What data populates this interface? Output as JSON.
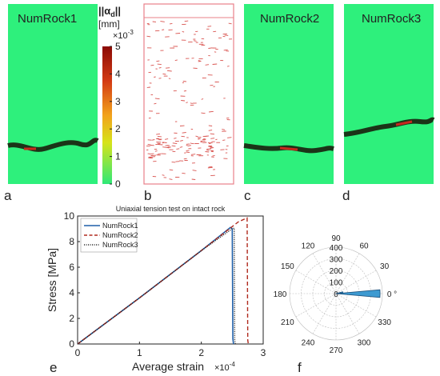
{
  "panels": {
    "a": {
      "label": "a",
      "title": "NumRock1"
    },
    "b": {
      "label": "b"
    },
    "c": {
      "label": "c",
      "title": "NumRock2"
    },
    "d": {
      "label": "d",
      "title": "NumRock3"
    },
    "e": {
      "label": "e"
    },
    "f": {
      "label": "f"
    }
  },
  "colorbar": {
    "title_line1": "||α",
    "title_sub": "d",
    "title_end": "||",
    "unit": "[mm]",
    "multiplier": "×10",
    "multiplier_exp": "-3",
    "ticks": [
      "5",
      "4",
      "3",
      "2",
      "1",
      "0"
    ],
    "range": [
      0,
      5
    ],
    "colors": [
      "#2ee878",
      "#d6e31a",
      "#f2a21c",
      "#d33a14",
      "#8b0a05"
    ]
  },
  "colors": {
    "background_field": "#2ef07c",
    "crack_dark": "#1b3418",
    "crack_red": "#c8281e",
    "panel_b_border": "#e8808a",
    "panel_b_marks": "#d9534f",
    "series1": "#1f5fa8",
    "series2": "#b02a1e",
    "series3": "#202020",
    "rose_fill": "#3d9ad1"
  },
  "chart_data": [
    {
      "type": "line",
      "title": "Uniaxial tension test on intact rock",
      "xlabel": "Average strain",
      "x_multiplier": "×10",
      "x_multiplier_exp": "-4",
      "ylabel": "Stress [MPa]",
      "xlim": [
        0,
        3
      ],
      "ylim": [
        0,
        10
      ],
      "xticks": [
        "0",
        "1",
        "2",
        "3"
      ],
      "yticks": [
        "0",
        "2",
        "4",
        "6",
        "8",
        "10"
      ],
      "legend": "top-left",
      "series": [
        {
          "name": "NumRock1",
          "style": "solid",
          "x": [
            0,
            1.0,
            2.0,
            2.47,
            2.5,
            2.51,
            2.52
          ],
          "y": [
            0,
            3.6,
            7.3,
            9.1,
            9.0,
            0.4,
            0
          ]
        },
        {
          "name": "NumRock2",
          "style": "dashed",
          "x": [
            0,
            1.0,
            2.0,
            2.6,
            2.74,
            2.75,
            2.76
          ],
          "y": [
            0,
            3.6,
            7.3,
            9.55,
            9.85,
            0.3,
            0
          ]
        },
        {
          "name": "NumRock3",
          "style": "dotted",
          "x": [
            0,
            1.0,
            2.0,
            2.5,
            2.53,
            2.54,
            2.55
          ],
          "y": [
            0,
            3.6,
            7.3,
            9.0,
            9.05,
            0.3,
            0
          ]
        }
      ]
    },
    {
      "type": "polar",
      "radial_ticks": [
        "100",
        "200",
        "300",
        "400"
      ],
      "radial_max": 400,
      "angle_ticks": [
        "0 °",
        "30",
        "60",
        "90",
        "120",
        "150",
        "180",
        "210",
        "240",
        "270",
        "300",
        "330"
      ],
      "origin_label": "0",
      "bins": [
        {
          "theta_start": -5,
          "theta_end": 5,
          "r": 380
        },
        {
          "theta_start": 5,
          "theta_end": 15,
          "r": 60
        }
      ]
    }
  ]
}
